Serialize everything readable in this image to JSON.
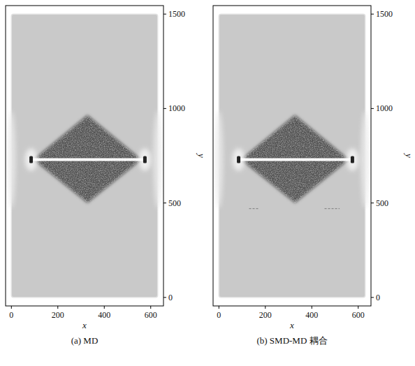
{
  "chart_data": [
    {
      "type": "field",
      "title": "(a) MD",
      "x_label": "x",
      "y_label": "y",
      "xlim": [
        -25,
        655
      ],
      "ylim": [
        -45,
        1545
      ],
      "xticks": [
        0,
        200,
        400,
        600
      ],
      "yticks": [
        0,
        500,
        1000,
        1500
      ],
      "plate": {
        "x": [
          0,
          630
        ],
        "y": [
          0,
          1500
        ]
      },
      "crack": {
        "x": [
          85,
          575
        ],
        "y": 730
      },
      "stress_zone": {
        "x": [
          95,
          560
        ],
        "y": [
          500,
          965
        ]
      }
    },
    {
      "type": "field",
      "title": "(b) SMD-MD 耦合",
      "x_label": "x",
      "y_label": "y",
      "xlim": [
        -25,
        655
      ],
      "ylim": [
        -45,
        1545
      ],
      "xticks": [
        0,
        200,
        400,
        600
      ],
      "yticks": [
        0,
        500,
        1000,
        1500
      ],
      "plate": {
        "x": [
          0,
          630
        ],
        "y": [
          0,
          1500
        ]
      },
      "crack": {
        "x": [
          85,
          575
        ],
        "y": 730
      },
      "stress_zone": {
        "x": [
          95,
          560
        ],
        "y": [
          500,
          965
        ]
      },
      "interface": {
        "y": 470,
        "segments": [
          [
            130,
            170
          ],
          [
            455,
            520
          ]
        ]
      }
    }
  ]
}
